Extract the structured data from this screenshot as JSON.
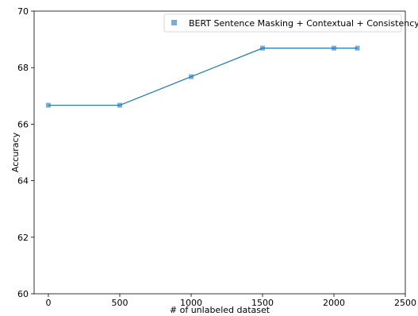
{
  "chart_data": {
    "type": "line",
    "x": [
      0,
      500,
      1000,
      1500,
      2000,
      2164
    ],
    "series": [
      {
        "name": "BERT Sentence Masking + Contextual + Consistency",
        "values": [
          66.67,
          66.67,
          67.68,
          68.69,
          68.69,
          68.69
        ],
        "color": "#1f77b4",
        "marker": "square"
      }
    ],
    "xlabel": "# of unlabeled dataset",
    "ylabel": "Accuracy",
    "xlim": [
      -100,
      2500
    ],
    "ylim": [
      60,
      70
    ],
    "xticks": [
      0,
      500,
      1000,
      1500,
      2000,
      2500
    ],
    "yticks": [
      60,
      62,
      64,
      66,
      68,
      70
    ],
    "xtick_labels": [
      "0",
      "500",
      "1000",
      "1500",
      "2000",
      "2500"
    ],
    "ytick_labels": [
      "60",
      "62",
      "64",
      "66",
      "68",
      "70"
    ],
    "grid": false,
    "legend_position": "top-right"
  }
}
